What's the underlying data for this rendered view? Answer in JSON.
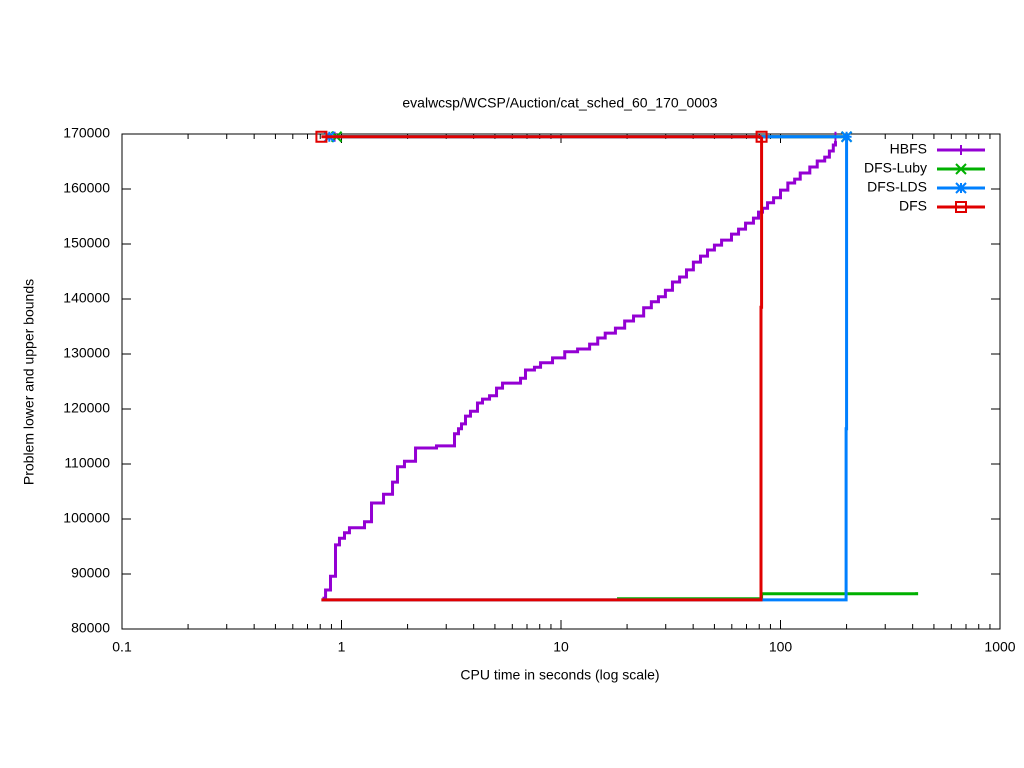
{
  "chart_data": {
    "type": "line",
    "title": "evalwcsp/WCSP/Auction/cat_sched_60_170_0003",
    "x_label": "CPU time in seconds (log scale)",
    "y_label": "Problem lower and upper bounds",
    "x_log": true,
    "xlim": [
      0.1,
      1000
    ],
    "ylim": [
      80000,
      170000
    ],
    "xticks": [
      0.1,
      1,
      10,
      100,
      1000
    ],
    "yticks": [
      80000,
      90000,
      100000,
      110000,
      120000,
      130000,
      140000,
      150000,
      160000,
      170000
    ],
    "legend": "top-right",
    "series": [
      {
        "name": "HBFS",
        "color": "#9400d3",
        "marker": "plus",
        "x": [
          0.819,
          0.846,
          0.891,
          0.939,
          0.979,
          1.032,
          1.087,
          1.273,
          1.37,
          1.554,
          1.708,
          1.799,
          1.936,
          2.174,
          2.709,
          3.272,
          3.412,
          3.521,
          3.672,
          3.869,
          4.164,
          4.389,
          4.725,
          5.085,
          5.415,
          6.54,
          6.89,
          7.57,
          8.07,
          9.15,
          10.4,
          11.9,
          13.5,
          14.7,
          15.9,
          17.7,
          19.5,
          21.4,
          23.8,
          25.8,
          27.8,
          29.9,
          32.2,
          34.7,
          37.3,
          40.1,
          43.2,
          46.5,
          50,
          53.9,
          59.8,
          64.4,
          69.3,
          75.3,
          79.4,
          82.8,
          87.3,
          93,
          100,
          108,
          116,
          123,
          136,
          147,
          159,
          167,
          174,
          178,
          null,
          0.93,
          178
        ],
        "values": [
          85600,
          87100,
          89600,
          95300,
          96500,
          97500,
          98400,
          99500,
          102900,
          104500,
          106700,
          109500,
          110500,
          112900,
          113300,
          115500,
          116400,
          117300,
          118700,
          119600,
          121100,
          121800,
          122400,
          123800,
          124700,
          125600,
          127100,
          127600,
          128400,
          129300,
          130400,
          130900,
          131800,
          132900,
          133800,
          134700,
          136000,
          136900,
          138400,
          139500,
          140400,
          141600,
          143100,
          144000,
          145300,
          146700,
          147800,
          148900,
          149800,
          150700,
          151800,
          152700,
          153800,
          154700,
          155800,
          156500,
          157500,
          158400,
          159800,
          161100,
          161800,
          162900,
          164000,
          165100,
          165800,
          166900,
          168000,
          168700,
          null,
          169500,
          169500
        ]
      },
      {
        "name": "DFS-Luby",
        "color": "#00b000",
        "marker": "cross",
        "x": [
          18,
          82,
          417,
          null,
          0.95,
          200
        ],
        "values": [
          85500,
          86400,
          86700,
          null,
          169500,
          169500
        ]
      },
      {
        "name": "DFS-LDS",
        "color": "#0080ff",
        "marker": "star",
        "x": [
          0.81,
          199,
          200,
          null,
          0.88,
          200
        ],
        "values": [
          85300,
          116400,
          169500,
          null,
          169500,
          169500
        ]
      },
      {
        "name": "DFS",
        "color": "#e00000",
        "marker": "square",
        "x": [
          0.81,
          81.5,
          82,
          null,
          0.81,
          82
        ],
        "values": [
          85300,
          138500,
          169500,
          null,
          169500,
          169500
        ]
      }
    ]
  }
}
